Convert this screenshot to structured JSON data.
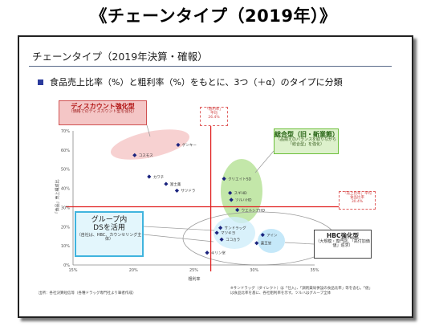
{
  "page_title": "《チェーンタイプ（2019年）》",
  "slide": {
    "header": "チェーンタイプ（2019年決算・確報）",
    "subtitle": "食品売上比率（%）と粗利率（%）をもとに、3つ（＋α）のタイプに分類"
  },
  "callouts": {
    "discount": {
      "title": "ディスカウント強化型",
      "sub": "（価格でのディスカウント型を強化）"
    },
    "general": {
      "title": "総合型（旧・新業態）",
      "sub": "（品揃えのバランスを取りながら「総合型」を強化）"
    },
    "group": {
      "title": "グループ内\nDSを活用",
      "sub": "（自社は、HBC、カウンセリング主体）"
    },
    "hbc": {
      "title": "HBC強化型",
      "sub": "（大規模・専門店、「高付加価値」追求）"
    },
    "avg_x": {
      "line1": "「粗利率」",
      "line2": "平均",
      "line3": "26.4%"
    },
    "avg_y": {
      "line1": "「売上比率」平均",
      "line2": "食品比率",
      "line3": "30.4%"
    }
  },
  "footnotes": {
    "left": "出所：各社決算短信等（各種ドラッグ専門社より筆者作成）",
    "right": "※サンドラッグ（ダイレクト）は「仕入」、「調剤薬局併設の食品比率」等を含む。「値」は食品比率を基に、各社粗利率を示す。ツルハはグループ全体"
  },
  "colors": {
    "marker": "#1a237e",
    "avg_line": "#e02020",
    "discount_fill": "#f6c9c9",
    "general_fill": "#b8e39a",
    "hbc_fill": "#bfe6f8"
  },
  "chart_data": {
    "type": "scatter",
    "xlabel": "粗利率",
    "ylabel": "「食品」売上構成比",
    "xlim": [
      15,
      35
    ],
    "ylim": [
      0,
      70
    ],
    "x_ticks": [
      "15%",
      "20%",
      "25%",
      "30%",
      "35%"
    ],
    "y_ticks": [
      "0%",
      "10%",
      "20%",
      "30%",
      "40%",
      "50%",
      "60%",
      "70%"
    ],
    "grid": false,
    "avg_lines": {
      "x": 26.4,
      "y": 30.4
    },
    "series": [
      {
        "points": [
          {
            "label": "コスモス",
            "x": 20.1,
            "y": 57.3
          },
          {
            "label": "ゲンキー",
            "x": 23.7,
            "y": 62.7
          },
          {
            "label": "カワチ",
            "x": 21.3,
            "y": 46.1
          },
          {
            "label": "富士薬",
            "x": 22.7,
            "y": 42.3
          },
          {
            "label": "サツドラ",
            "x": 23.6,
            "y": 38.8
          },
          {
            "label": "クリエイトSD",
            "x": 27.5,
            "y": 45.0
          },
          {
            "label": "スギHD",
            "x": 28.0,
            "y": 37.6
          },
          {
            "label": "ツルハHD",
            "x": 28.1,
            "y": 34.0
          },
          {
            "label": "ウエルシアHD",
            "x": 28.6,
            "y": 28.7
          },
          {
            "label": "サンドラッグ",
            "x": 27.2,
            "y": 19.4
          },
          {
            "label": "マツキヨ",
            "x": 26.9,
            "y": 16.8
          },
          {
            "label": "ココカラ",
            "x": 27.3,
            "y": 13.3
          },
          {
            "label": "アイン",
            "x": 30.7,
            "y": 15.7
          },
          {
            "label": "薬王堂",
            "x": 30.2,
            "y": 11.4
          },
          {
            "label": "キリン堂",
            "x": 26.1,
            "y": 6.4
          }
        ]
      }
    ]
  }
}
